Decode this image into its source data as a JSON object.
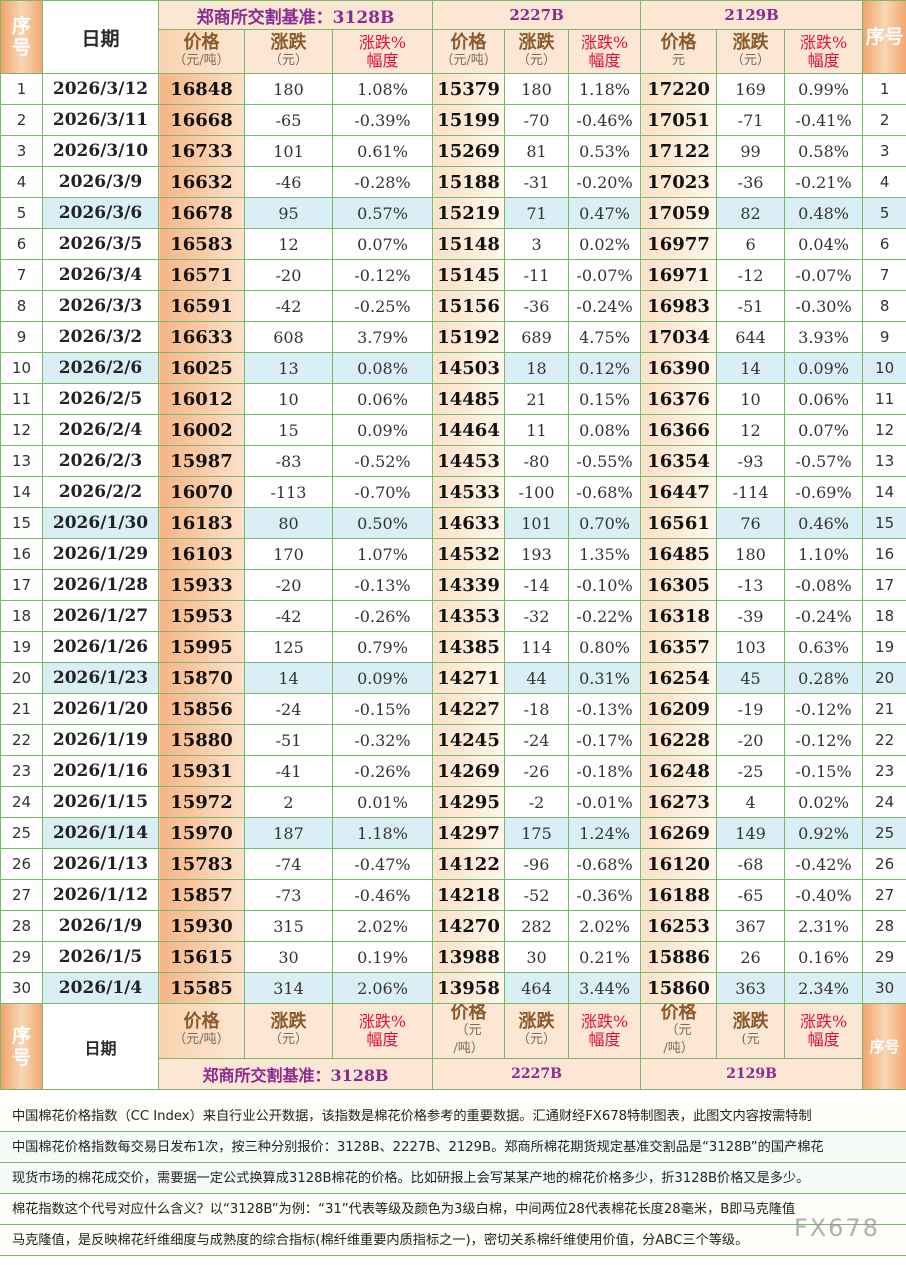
{
  "header": {
    "seq": "序号",
    "date": "日期",
    "groups": [
      "郑商所交割基准：3128B",
      "2227B",
      "2129B"
    ],
    "price": "价格",
    "price_unit_top": "（元/吨）",
    "price_unit_mid": "元",
    "price_unit_mid2": "（元",
    "price_unit_tail": "/吨）",
    "change": "涨跌",
    "change_unit": "（元）",
    "change_unit_short": "(元",
    "pct_top": "涨跌%",
    "pct_bottom": "幅度"
  },
  "rows": [
    {
      "seq": "1",
      "date": "2026/3/12",
      "a_price": "16848",
      "a_chg": "180",
      "a_pct": "1.08%",
      "b_price": "15379",
      "b_chg": "180",
      "b_pct": "1.18%",
      "c_price": "17220",
      "c_chg": "169",
      "c_pct": "0.99%",
      "seq2": "1"
    },
    {
      "seq": "2",
      "date": "2026/3/11",
      "a_price": "16668",
      "a_chg": "-65",
      "a_pct": "-0.39%",
      "b_price": "15199",
      "b_chg": "-70",
      "b_pct": "-0.46%",
      "c_price": "17051",
      "c_chg": "-71",
      "c_pct": "-0.41%",
      "seq2": "2"
    },
    {
      "seq": "3",
      "date": "2026/3/10",
      "a_price": "16733",
      "a_chg": "101",
      "a_pct": "0.61%",
      "b_price": "15269",
      "b_chg": "81",
      "b_pct": "0.53%",
      "c_price": "17122",
      "c_chg": "99",
      "c_pct": "0.58%",
      "seq2": "3"
    },
    {
      "seq": "4",
      "date": "2026/3/9",
      "a_price": "16632",
      "a_chg": "-46",
      "a_pct": "-0.28%",
      "b_price": "15188",
      "b_chg": "-31",
      "b_pct": "-0.20%",
      "c_price": "17023",
      "c_chg": "-36",
      "c_pct": "-0.21%",
      "seq2": "4"
    },
    {
      "seq": "5",
      "date": "2026/3/6",
      "a_price": "16678",
      "a_chg": "95",
      "a_pct": "0.57%",
      "b_price": "15219",
      "b_chg": "71",
      "b_pct": "0.47%",
      "c_price": "17059",
      "c_chg": "82",
      "c_pct": "0.48%",
      "seq2": "5"
    },
    {
      "seq": "6",
      "date": "2026/3/5",
      "a_price": "16583",
      "a_chg": "12",
      "a_pct": "0.07%",
      "b_price": "15148",
      "b_chg": "3",
      "b_pct": "0.02%",
      "c_price": "16977",
      "c_chg": "6",
      "c_pct": "0.04%",
      "seq2": "6"
    },
    {
      "seq": "7",
      "date": "2026/3/4",
      "a_price": "16571",
      "a_chg": "-20",
      "a_pct": "-0.12%",
      "b_price": "15145",
      "b_chg": "-11",
      "b_pct": "-0.07%",
      "c_price": "16971",
      "c_chg": "-12",
      "c_pct": "-0.07%",
      "seq2": "7"
    },
    {
      "seq": "8",
      "date": "2026/3/3",
      "a_price": "16591",
      "a_chg": "-42",
      "a_pct": "-0.25%",
      "b_price": "15156",
      "b_chg": "-36",
      "b_pct": "-0.24%",
      "c_price": "16983",
      "c_chg": "-51",
      "c_pct": "-0.30%",
      "seq2": "8"
    },
    {
      "seq": "9",
      "date": "2026/3/2",
      "a_price": "16633",
      "a_chg": "608",
      "a_pct": "3.79%",
      "b_price": "15192",
      "b_chg": "689",
      "b_pct": "4.75%",
      "c_price": "17034",
      "c_chg": "644",
      "c_pct": "3.93%",
      "seq2": "9"
    },
    {
      "seq": "10",
      "date": "2026/2/6",
      "a_price": "16025",
      "a_chg": "13",
      "a_pct": "0.08%",
      "b_price": "14503",
      "b_chg": "18",
      "b_pct": "0.12%",
      "c_price": "16390",
      "c_chg": "14",
      "c_pct": "0.09%",
      "seq2": "10"
    },
    {
      "seq": "11",
      "date": "2026/2/5",
      "a_price": "16012",
      "a_chg": "10",
      "a_pct": "0.06%",
      "b_price": "14485",
      "b_chg": "21",
      "b_pct": "0.15%",
      "c_price": "16376",
      "c_chg": "10",
      "c_pct": "0.06%",
      "seq2": "11"
    },
    {
      "seq": "12",
      "date": "2026/2/4",
      "a_price": "16002",
      "a_chg": "15",
      "a_pct": "0.09%",
      "b_price": "14464",
      "b_chg": "11",
      "b_pct": "0.08%",
      "c_price": "16366",
      "c_chg": "12",
      "c_pct": "0.07%",
      "seq2": "12"
    },
    {
      "seq": "13",
      "date": "2026/2/3",
      "a_price": "15987",
      "a_chg": "-83",
      "a_pct": "-0.52%",
      "b_price": "14453",
      "b_chg": "-80",
      "b_pct": "-0.55%",
      "c_price": "16354",
      "c_chg": "-93",
      "c_pct": "-0.57%",
      "seq2": "13"
    },
    {
      "seq": "14",
      "date": "2026/2/2",
      "a_price": "16070",
      "a_chg": "-113",
      "a_pct": "-0.70%",
      "b_price": "14533",
      "b_chg": "-100",
      "b_pct": "-0.68%",
      "c_price": "16447",
      "c_chg": "-114",
      "c_pct": "-0.69%",
      "seq2": "14"
    },
    {
      "seq": "15",
      "date": "2026/1/30",
      "a_price": "16183",
      "a_chg": "80",
      "a_pct": "0.50%",
      "b_price": "14633",
      "b_chg": "101",
      "b_pct": "0.70%",
      "c_price": "16561",
      "c_chg": "76",
      "c_pct": "0.46%",
      "seq2": "15"
    },
    {
      "seq": "16",
      "date": "2026/1/29",
      "a_price": "16103",
      "a_chg": "170",
      "a_pct": "1.07%",
      "b_price": "14532",
      "b_chg": "193",
      "b_pct": "1.35%",
      "c_price": "16485",
      "c_chg": "180",
      "c_pct": "1.10%",
      "seq2": "16"
    },
    {
      "seq": "17",
      "date": "2026/1/28",
      "a_price": "15933",
      "a_chg": "-20",
      "a_pct": "-0.13%",
      "b_price": "14339",
      "b_chg": "-14",
      "b_pct": "-0.10%",
      "c_price": "16305",
      "c_chg": "-13",
      "c_pct": "-0.08%",
      "seq2": "17"
    },
    {
      "seq": "18",
      "date": "2026/1/27",
      "a_price": "15953",
      "a_chg": "-42",
      "a_pct": "-0.26%",
      "b_price": "14353",
      "b_chg": "-32",
      "b_pct": "-0.22%",
      "c_price": "16318",
      "c_chg": "-39",
      "c_pct": "-0.24%",
      "seq2": "18"
    },
    {
      "seq": "19",
      "date": "2026/1/26",
      "a_price": "15995",
      "a_chg": "125",
      "a_pct": "0.79%",
      "b_price": "14385",
      "b_chg": "114",
      "b_pct": "0.80%",
      "c_price": "16357",
      "c_chg": "103",
      "c_pct": "0.63%",
      "seq2": "19"
    },
    {
      "seq": "20",
      "date": "2026/1/23",
      "a_price": "15870",
      "a_chg": "14",
      "a_pct": "0.09%",
      "b_price": "14271",
      "b_chg": "44",
      "b_pct": "0.31%",
      "c_price": "16254",
      "c_chg": "45",
      "c_pct": "0.28%",
      "seq2": "20"
    },
    {
      "seq": "21",
      "date": "2026/1/20",
      "a_price": "15856",
      "a_chg": "-24",
      "a_pct": "-0.15%",
      "b_price": "14227",
      "b_chg": "-18",
      "b_pct": "-0.13%",
      "c_price": "16209",
      "c_chg": "-19",
      "c_pct": "-0.12%",
      "seq2": "21"
    },
    {
      "seq": "22",
      "date": "2026/1/19",
      "a_price": "15880",
      "a_chg": "-51",
      "a_pct": "-0.32%",
      "b_price": "14245",
      "b_chg": "-24",
      "b_pct": "-0.17%",
      "c_price": "16228",
      "c_chg": "-20",
      "c_pct": "-0.12%",
      "seq2": "22"
    },
    {
      "seq": "23",
      "date": "2026/1/16",
      "a_price": "15931",
      "a_chg": "-41",
      "a_pct": "-0.26%",
      "b_price": "14269",
      "b_chg": "-26",
      "b_pct": "-0.18%",
      "c_price": "16248",
      "c_chg": "-25",
      "c_pct": "-0.15%",
      "seq2": "23"
    },
    {
      "seq": "24",
      "date": "2026/1/15",
      "a_price": "15972",
      "a_chg": "2",
      "a_pct": "0.01%",
      "b_price": "14295",
      "b_chg": "-2",
      "b_pct": "-0.01%",
      "c_price": "16273",
      "c_chg": "4",
      "c_pct": "0.02%",
      "seq2": "24"
    },
    {
      "seq": "25",
      "date": "2026/1/14",
      "a_price": "15970",
      "a_chg": "187",
      "a_pct": "1.18%",
      "b_price": "14297",
      "b_chg": "175",
      "b_pct": "1.24%",
      "c_price": "16269",
      "c_chg": "149",
      "c_pct": "0.92%",
      "seq2": "25"
    },
    {
      "seq": "26",
      "date": "2026/1/13",
      "a_price": "15783",
      "a_chg": "-74",
      "a_pct": "-0.47%",
      "b_price": "14122",
      "b_chg": "-96",
      "b_pct": "-0.68%",
      "c_price": "16120",
      "c_chg": "-68",
      "c_pct": "-0.42%",
      "seq2": "26"
    },
    {
      "seq": "27",
      "date": "2026/1/12",
      "a_price": "15857",
      "a_chg": "-73",
      "a_pct": "-0.46%",
      "b_price": "14218",
      "b_chg": "-52",
      "b_pct": "-0.36%",
      "c_price": "16188",
      "c_chg": "-65",
      "c_pct": "-0.40%",
      "seq2": "27"
    },
    {
      "seq": "28",
      "date": "2026/1/9",
      "a_price": "15930",
      "a_chg": "315",
      "a_pct": "2.02%",
      "b_price": "14270",
      "b_chg": "282",
      "b_pct": "2.02%",
      "c_price": "16253",
      "c_chg": "367",
      "c_pct": "2.31%",
      "seq2": "28"
    },
    {
      "seq": "29",
      "date": "2026/1/5",
      "a_price": "15615",
      "a_chg": "30",
      "a_pct": "0.19%",
      "b_price": "13988",
      "b_chg": "30",
      "b_pct": "0.21%",
      "c_price": "15886",
      "c_chg": "26",
      "c_pct": "0.16%",
      "seq2": "29"
    },
    {
      "seq": "30",
      "date": "2026/1/4",
      "a_price": "15585",
      "a_chg": "314",
      "a_pct": "2.06%",
      "b_price": "13958",
      "b_chg": "464",
      "b_pct": "3.44%",
      "c_price": "15860",
      "c_chg": "363",
      "c_pct": "2.34%",
      "seq2": "30"
    }
  ],
  "highlighted_rows": [
    5,
    10,
    15,
    20,
    25,
    30
  ],
  "notes": [
    "中国棉花价格指数（CC Index）来自行业公开数据，该指数是棉花价格参考的重要数据。汇通财经FX678特制图表，此图文内容按需特制",
    "中国棉花价格指数每交易日发布1次，按三种分别报价：3128B、2227B、2129B。郑商所棉花期货规定基准交割品是“3128B”的国产棉花",
    "现货市场的棉花成交价，需要据一定公式换算成3128B棉花的价格。比如研报上会写某某产地的棉花价格多少，折3128B价格又是多少。",
    "棉花指数这个代号对应什么含义？以“3128B”为例：“31”代表等级及颜色为3级白棉，中间两位28代表棉花长度28毫米，B即马克隆值",
    "马克隆值，是反映棉花纤维细度与成熟度的综合指标(棉纤维重要内质指标之一)，密切关系棉纤维使用价值，分ABC三个等级。"
  ],
  "watermark": "FX678",
  "colors": {
    "accent_purple": "#8a2b91",
    "pct_red": "#e0103a",
    "header_orange": "#f2a66c",
    "highlight_blue": "#daeef5"
  }
}
